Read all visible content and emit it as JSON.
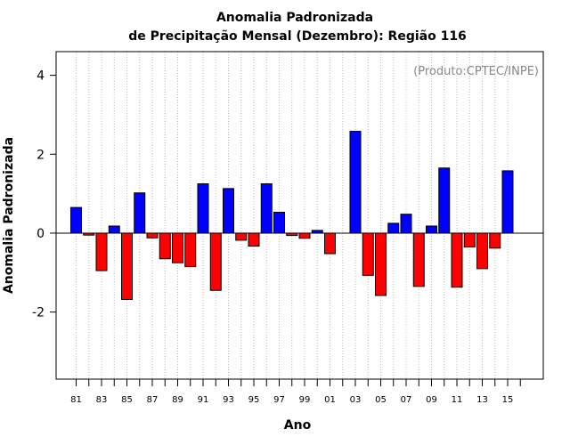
{
  "chart_data": {
    "type": "bar",
    "title": "Anomalia Padronizada",
    "subtitle": "de Precipitação Mensal (Dezembro): Região 116",
    "xlabel": "Ano",
    "ylabel": "Anomalia Padronizada",
    "credit": "(Produto:CPTEC/INPE)",
    "ylim": [
      -3.7,
      4.6
    ],
    "yticks": [
      -2,
      0,
      2,
      4
    ],
    "grid": "vertical dotted lines at each year",
    "tick_labels": [
      "81",
      "83",
      "85",
      "87",
      "89",
      "91",
      "93",
      "95",
      "97",
      "99",
      "01",
      "03",
      "05",
      "07",
      "09",
      "11",
      "13",
      "15"
    ],
    "categories": [
      "81",
      "82",
      "83",
      "84",
      "85",
      "86",
      "87",
      "88",
      "89",
      "90",
      "91",
      "92",
      "93",
      "94",
      "95",
      "96",
      "97",
      "98",
      "99",
      "00",
      "01",
      "02",
      "03",
      "04",
      "05",
      "06",
      "07",
      "08",
      "09",
      "10",
      "11",
      "12",
      "13",
      "14",
      "15"
    ],
    "values": [
      0.65,
      -0.05,
      -0.95,
      0.18,
      -1.68,
      1.02,
      -0.12,
      -0.65,
      -0.75,
      -0.85,
      1.25,
      -1.45,
      1.13,
      -0.18,
      -0.33,
      1.25,
      0.53,
      -0.06,
      -0.13,
      0.07,
      -0.52,
      0.0,
      2.58,
      -1.07,
      -1.58,
      0.25,
      0.48,
      -1.35,
      0.18,
      1.65,
      -1.37,
      -0.35,
      -0.9,
      -0.38,
      1.58
    ],
    "colors": {
      "positive": "#0000ff",
      "negative": "#ff0000",
      "zero_line": "#000000"
    }
  }
}
